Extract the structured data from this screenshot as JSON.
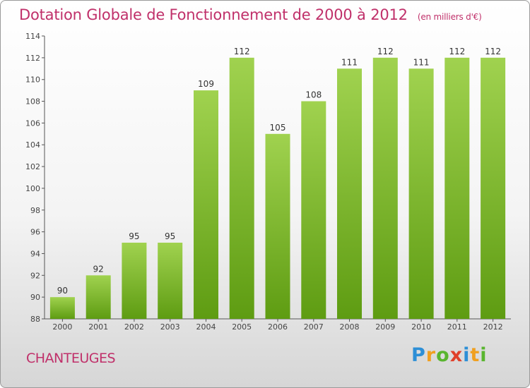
{
  "header": {
    "title": "Dotation Globale de Fonctionnement de 2000 à 2012",
    "unit": "(en milliers d'€)"
  },
  "footer": {
    "commune": "CHANTEUGES",
    "logo_letters": [
      "P",
      "r",
      "o",
      "x",
      "i",
      "t",
      "i"
    ]
  },
  "chart_data": {
    "type": "bar",
    "categories": [
      "2000",
      "2001",
      "2002",
      "2003",
      "2004",
      "2005",
      "2006",
      "2007",
      "2008",
      "2009",
      "2010",
      "2011",
      "2012"
    ],
    "values": [
      90,
      92,
      95,
      95,
      109,
      112,
      105,
      108,
      111,
      112,
      111,
      112,
      112
    ],
    "ylim": [
      88,
      114
    ],
    "yticks": [
      88,
      90,
      92,
      94,
      96,
      98,
      100,
      102,
      104,
      106,
      108,
      110,
      112,
      114
    ],
    "grid": false,
    "bar_color_top": "#9fd14e",
    "bar_color_bottom": "#5f9d13"
  }
}
